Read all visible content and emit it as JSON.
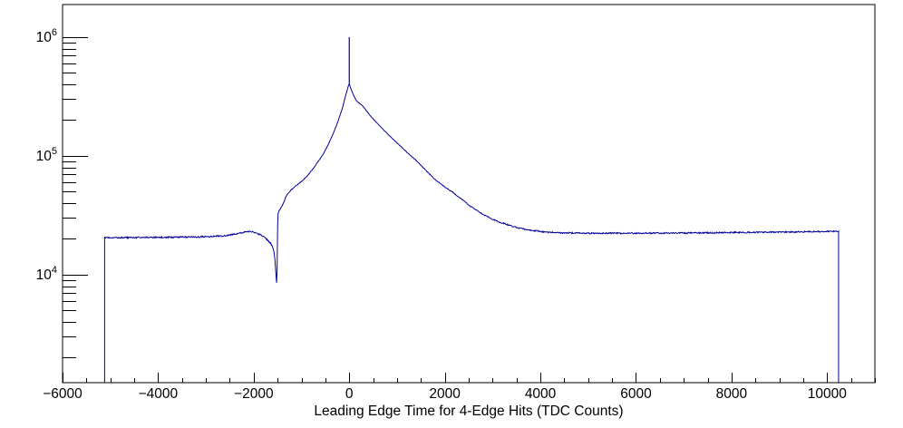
{
  "page": {
    "background": "#ffffff"
  },
  "chart_data": {
    "type": "line",
    "subtype": "histogram-outline",
    "title": "",
    "xlabel": "Leading Edge Time for 4-Edge Hits (TDC Counts)",
    "ylabel": "",
    "y_scale": "log",
    "xlim": [
      -6000,
      11000
    ],
    "ylim": [
      1230,
      1880000
    ],
    "grid": false,
    "legend": false,
    "line_color": "#000099",
    "axis_color": "#000000",
    "text_color": "#000000",
    "x_axis": {
      "major_step": 2000,
      "minor_step": 500,
      "major_ticks": [
        {
          "value": -6000,
          "label": "−6000"
        },
        {
          "value": -4000,
          "label": "−4000"
        },
        {
          "value": -2000,
          "label": "−2000"
        },
        {
          "value": 0,
          "label": "0"
        },
        {
          "value": 2000,
          "label": "2000"
        },
        {
          "value": 4000,
          "label": "4000"
        },
        {
          "value": 6000,
          "label": "6000"
        },
        {
          "value": 8000,
          "label": "8000"
        },
        {
          "value": 10000,
          "label": "10000"
        }
      ]
    },
    "y_axis": {
      "base_label": "10",
      "major_tick_exponents": [
        4,
        5,
        6
      ],
      "minor_mantissas": [
        2,
        3,
        4,
        5,
        6,
        7,
        8,
        9
      ]
    },
    "noise_amplitude": 0.006,
    "series": [
      {
        "name": "leading-edge-time-histogram",
        "x_start": -5120,
        "x_end": 10240,
        "baseline_left": 20500,
        "baseline_right": 22400,
        "peak": {
          "x": 0,
          "value": 408000
        },
        "spike": {
          "x": 0,
          "top": 1000000
        },
        "dip": {
          "x": -1525,
          "bottom": 8400
        },
        "control_points": [
          [
            -5120,
            20500
          ],
          [
            -4900,
            20450
          ],
          [
            -4600,
            20500
          ],
          [
            -4300,
            20550
          ],
          [
            -4000,
            20600
          ],
          [
            -3700,
            20650
          ],
          [
            -3400,
            20700
          ],
          [
            -3100,
            20800
          ],
          [
            -2850,
            21000
          ],
          [
            -2600,
            21200
          ],
          [
            -2450,
            21700
          ],
          [
            -2300,
            22300
          ],
          [
            -2180,
            22800
          ],
          [
            -2090,
            23100
          ],
          [
            -2000,
            22900
          ],
          [
            -1940,
            22300
          ],
          [
            -1860,
            21600
          ],
          [
            -1790,
            20800
          ],
          [
            -1730,
            19900
          ],
          [
            -1680,
            19000
          ],
          [
            -1640,
            18200
          ],
          [
            -1610,
            17200
          ],
          [
            -1585,
            16000
          ],
          [
            -1565,
            14500
          ],
          [
            -1550,
            12500
          ],
          [
            -1535,
            10200
          ],
          [
            -1525,
            8400
          ],
          [
            -1515,
            8600
          ],
          [
            -1508,
            12000
          ],
          [
            -1502,
            22000
          ],
          [
            -1496,
            30000
          ],
          [
            -1490,
            32500
          ],
          [
            -1470,
            34000
          ],
          [
            -1440,
            36000
          ],
          [
            -1400,
            38500
          ],
          [
            -1360,
            41500
          ],
          [
            -1330,
            45000
          ],
          [
            -1290,
            47500
          ],
          [
            -1250,
            50000
          ],
          [
            -1150,
            54500
          ],
          [
            -1050,
            58500
          ],
          [
            -950,
            63500
          ],
          [
            -850,
            70000
          ],
          [
            -750,
            78500
          ],
          [
            -650,
            89500
          ],
          [
            -550,
            103000
          ],
          [
            -450,
            122000
          ],
          [
            -350,
            149000
          ],
          [
            -250,
            188000
          ],
          [
            -150,
            247000
          ],
          [
            -80,
            316000
          ],
          [
            -30,
            375000
          ],
          [
            0,
            408000
          ],
          [
            30,
            370000
          ],
          [
            80,
            330000
          ],
          [
            150,
            290000
          ],
          [
            281,
            263000
          ],
          [
            450,
            215000
          ],
          [
            660,
            175000
          ],
          [
            860,
            145000
          ],
          [
            1040,
            124000
          ],
          [
            1230,
            105000
          ],
          [
            1419,
            90000
          ],
          [
            1610,
            75000
          ],
          [
            1799,
            63000
          ],
          [
            1990,
            55000
          ],
          [
            2178,
            49000
          ],
          [
            2370,
            42500
          ],
          [
            2557,
            37000
          ],
          [
            2750,
            33000
          ],
          [
            2937,
            30000
          ],
          [
            3130,
            27800
          ],
          [
            3316,
            26300
          ],
          [
            3510,
            24800
          ],
          [
            3696,
            24000
          ],
          [
            3900,
            23300
          ],
          [
            4100,
            22800
          ],
          [
            4400,
            22500
          ],
          [
            5000,
            22300
          ],
          [
            6000,
            22300
          ],
          [
            7000,
            22400
          ],
          [
            8000,
            22600
          ],
          [
            9000,
            22800
          ],
          [
            10000,
            23100
          ],
          [
            10240,
            23200
          ]
        ]
      }
    ]
  }
}
